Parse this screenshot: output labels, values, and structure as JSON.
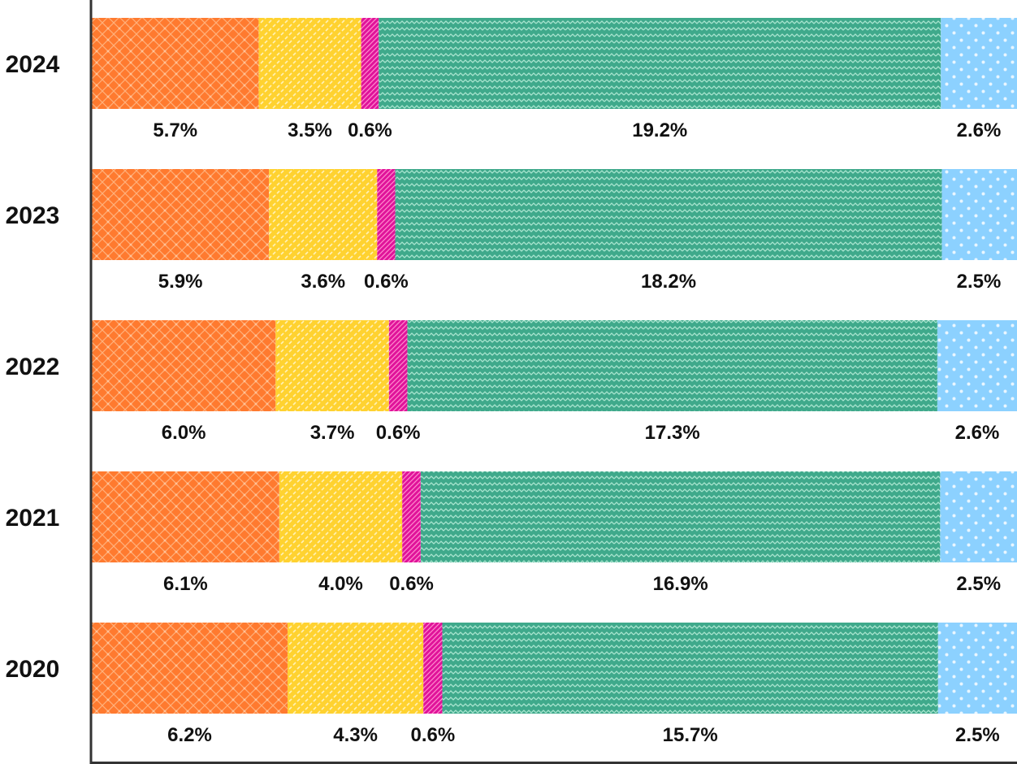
{
  "chart_data": {
    "type": "bar",
    "orientation": "horizontal",
    "stacked": true,
    "normalized": true,
    "categories": [
      "2024",
      "2023",
      "2022",
      "2021",
      "2020"
    ],
    "series": [
      {
        "values": [
          5.7,
          5.9,
          6.0,
          6.1,
          6.2
        ],
        "labels": [
          "5.7%",
          "5.9%",
          "6.0%",
          "6.1%",
          "6.2%"
        ],
        "color": "#FF7A2F",
        "pattern": "crosshatch-stars"
      },
      {
        "values": [
          3.5,
          3.6,
          3.7,
          4.0,
          4.3
        ],
        "labels": [
          "3.5%",
          "3.6%",
          "3.7%",
          "4.0%",
          "4.3%"
        ],
        "color": "#FFD230",
        "pattern": "diagonal-dashes"
      },
      {
        "values": [
          0.6,
          0.6,
          0.6,
          0.6,
          0.6
        ],
        "labels": [
          "0.6%",
          "0.6%",
          "0.6%",
          "0.6%",
          "0.6%"
        ],
        "color": "#E0139A",
        "pattern": "diagonal-stripes"
      },
      {
        "values": [
          19.2,
          18.2,
          17.3,
          16.9,
          15.7
        ],
        "labels": [
          "19.2%",
          "18.2%",
          "17.3%",
          "16.9%",
          "15.7%"
        ],
        "color": "#3FA98B",
        "pattern": "zigzag"
      },
      {
        "values": [
          2.6,
          2.5,
          2.6,
          2.5,
          2.5
        ],
        "labels": [
          "2.6%",
          "2.5%",
          "2.6%",
          "2.5%",
          "2.5%"
        ],
        "color": "#8CD1FF",
        "pattern": "dots"
      }
    ],
    "title": "",
    "xlabel": "",
    "ylabel": "",
    "legend": "none",
    "grid": false
  }
}
